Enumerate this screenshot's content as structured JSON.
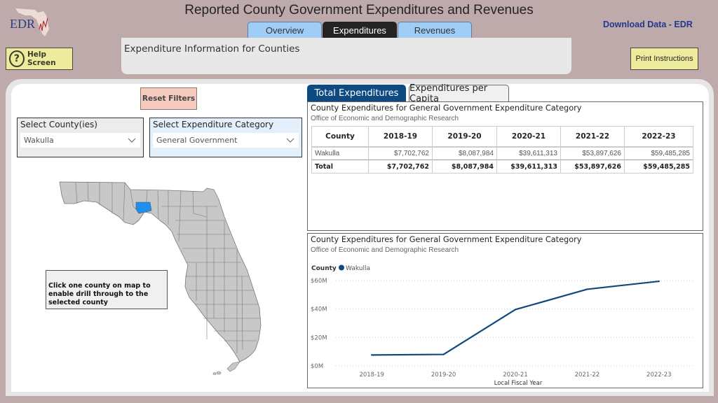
{
  "header": {
    "logo_text": "EDR",
    "title": "Reported County Government Expenditures and Revenues",
    "tabs": [
      {
        "label": "Overview",
        "active": false
      },
      {
        "label": "Expenditures",
        "active": true
      },
      {
        "label": "Revenues",
        "active": false
      }
    ],
    "download_link": "Download Data - EDR",
    "help_button": "Help Screen",
    "help_icon": "?",
    "info_banner": "Expenditure Information for Counties",
    "print_button": "Print Instructions"
  },
  "filters": {
    "reset_button": "Reset Filters",
    "county_slicer": {
      "title": "Select County(ies)",
      "value": "Wakulla"
    },
    "category_slicer": {
      "title": "Select Expenditure Category",
      "value": "General Government"
    }
  },
  "map": {
    "selected_county": "Wakulla",
    "highlight_color": "#1e8ff0",
    "note": "Click one county on map to enable drill through to the selected county"
  },
  "visual_tabs": [
    {
      "label": "Total Expenditures",
      "active": true
    },
    {
      "label": "Expenditures per Capita",
      "active": false
    }
  ],
  "table": {
    "title": "County Expenditures for General Government Expenditure Category",
    "subtitle": "Office of Economic and Demographic Research",
    "columns": [
      "County",
      "2018-19",
      "2019-20",
      "2020-21",
      "2021-22",
      "2022-23"
    ],
    "rows": [
      [
        "Wakulla",
        "$7,702,762",
        "$8,087,984",
        "$39,611,313",
        "$53,897,626",
        "$59,485,285"
      ]
    ],
    "total": [
      "Total",
      "$7,702,762",
      "$8,087,984",
      "$39,611,313",
      "$53,897,626",
      "$59,485,285"
    ]
  },
  "chart_data": {
    "type": "line",
    "title": "County Expenditures for General Government Expenditure Category",
    "subtitle": "Office of Economic and Demographic Research",
    "legend_title": "County",
    "legend_position": "top-left",
    "xlabel": "Local Fiscal Year",
    "ylabel": "",
    "categories": [
      "2018-19",
      "2019-20",
      "2020-21",
      "2021-22",
      "2022-23"
    ],
    "series": [
      {
        "name": "Wakulla",
        "color": "#12497c",
        "values": [
          7702762,
          8087984,
          39611313,
          53897626,
          59485285
        ]
      }
    ],
    "yticks": [
      0,
      20000000,
      40000000,
      60000000
    ],
    "ytick_labels": [
      "$0M",
      "$20M",
      "$40M",
      "$60M"
    ],
    "ylim": [
      0,
      60000000
    ],
    "grid": true
  }
}
